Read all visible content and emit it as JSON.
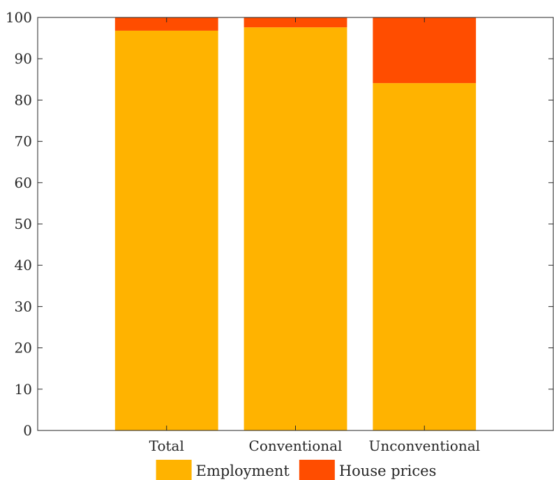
{
  "chart_data": {
    "type": "bar",
    "stacked": true,
    "categories": [
      "Total",
      "Conventional",
      "Unconventional"
    ],
    "series": [
      {
        "name": "Employment",
        "values": [
          96.8,
          97.6,
          84.1
        ],
        "color": "#FFB300"
      },
      {
        "name": "House prices",
        "values": [
          3.2,
          2.4,
          15.9
        ],
        "color": "#FF4D00"
      }
    ],
    "title": "",
    "xlabel": "",
    "ylabel": "",
    "ylim": [
      0,
      100
    ],
    "yticks": [
      0,
      10,
      20,
      30,
      40,
      50,
      60,
      70,
      80,
      90,
      100
    ],
    "grid": false,
    "legend_position": "bottom"
  }
}
